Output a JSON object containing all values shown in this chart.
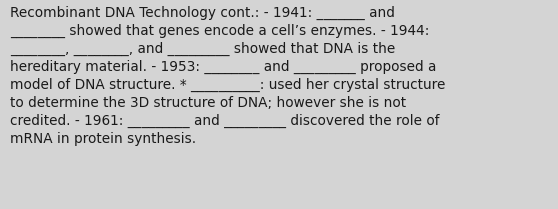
{
  "background_color": "#d4d4d4",
  "text_color": "#1a1a1a",
  "font_size": 9.8,
  "font_family": "DejaVu Sans",
  "text": "Recombinant DNA Technology cont.: - 1941: _______ and ________ showed that genes encode a cell’s enzymes. - 1944: ________, ________, and _________ showed that DNA is the hereditary material. - 1953: ________ and _________ proposed a model of DNA structure. * __________: used her crystal structure to determine the 3D structure of DNA; however she is not credited. - 1961: _________ and _________ discovered the role of mRNA in protein synthesis.",
  "fig_width": 5.58,
  "fig_height": 2.09,
  "dpi": 100
}
